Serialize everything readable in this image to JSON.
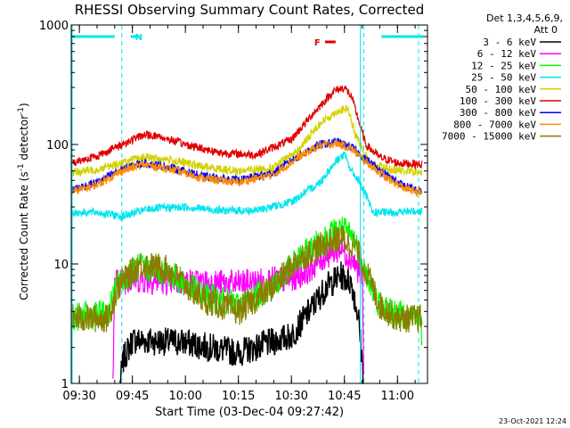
{
  "chart_data": {
    "type": "line",
    "title": "RHESSI Observing Summary Count Rates, Corrected",
    "xlabel": "Start Time (03-Dec-04 09:27:42)",
    "ylabel": "Corrected Count Rate (s^-1 detector^-1)",
    "ylabel_main": "Corrected Count Rate (s",
    "ylabel_sup1": "-1",
    "ylabel_mid": " detector",
    "ylabel_sup2": "-1",
    "ylabel_end": ")",
    "y_scale": "log",
    "ylim": [
      1,
      1000
    ],
    "xlim": [
      "09:27:42",
      "11:08:30"
    ],
    "x_ticks": [
      "09:30",
      "09:45",
      "10:00",
      "10:15",
      "10:30",
      "10:45",
      "11:00"
    ],
    "y_ticks": [
      "1",
      "10",
      "100",
      "1000"
    ],
    "grid": false,
    "legend_position": "right",
    "legend_header": [
      "Det 1,3,4,5,6,9,",
      "Att 0"
    ],
    "timestamp": "23-Oct-2021 12:24",
    "flags": [
      {
        "label": "N",
        "color": "#00e5ee",
        "segments": [
          [
            "09:27:42",
            "09:40:00"
          ],
          [
            "09:44:30",
            "09:47:00"
          ],
          [
            "10:55:30",
            "11:07:30"
          ]
        ]
      },
      {
        "label": "F",
        "color": "#e00000",
        "segments": [
          [
            "10:39:30",
            "10:42:30"
          ]
        ]
      }
    ],
    "event_markers": [
      {
        "time": "09:42:00",
        "style": "dashed"
      },
      {
        "time": "10:50:30",
        "style": "dashed"
      },
      {
        "time": "11:06:00",
        "style": "dashed"
      }
    ],
    "series": [
      {
        "name": "3 - 6 keV",
        "color": "#000000",
        "points": [
          [
            "09:41:30",
            1.0
          ],
          [
            "09:42:30",
            1.6
          ],
          [
            "09:45:00",
            2.3
          ],
          [
            "10:00:00",
            2.2
          ],
          [
            "10:15:00",
            1.8
          ],
          [
            "10:30:00",
            2.5
          ],
          [
            "10:35:00",
            4.0
          ],
          [
            "10:40:00",
            6.5
          ],
          [
            "10:44:00",
            8.0
          ],
          [
            "10:47:00",
            7.0
          ],
          [
            "10:49:00",
            3.5
          ],
          [
            "10:50:30",
            1.0
          ]
        ]
      },
      {
        "name": "6 - 12 keV",
        "color": "#ff00ff",
        "points": [
          [
            "09:39:30",
            1.0
          ],
          [
            "09:40:00",
            7.0
          ],
          [
            "09:45:00",
            7.5
          ],
          [
            "10:00:00",
            7.0
          ],
          [
            "10:15:00",
            6.8
          ],
          [
            "10:30:00",
            7.5
          ],
          [
            "10:35:00",
            9.0
          ],
          [
            "10:40:00",
            12.0
          ],
          [
            "10:44:00",
            13.5
          ],
          [
            "10:47:00",
            11.0
          ],
          [
            "10:50:00",
            8.0
          ],
          [
            "10:50:30",
            1.0
          ]
        ]
      },
      {
        "name": "12 - 25 keV",
        "color": "#00ff00",
        "points": [
          [
            "09:27:42",
            3.6
          ],
          [
            "09:38:00",
            3.8
          ],
          [
            "09:41:00",
            7.0
          ],
          [
            "09:47:00",
            9.5
          ],
          [
            "09:55:00",
            8.5
          ],
          [
            "10:05:00",
            5.5
          ],
          [
            "10:15:00",
            4.5
          ],
          [
            "10:25:00",
            6.5
          ],
          [
            "10:32:00",
            11.0
          ],
          [
            "10:40:00",
            17.0
          ],
          [
            "10:44:00",
            20.0
          ],
          [
            "10:48:00",
            16.0
          ],
          [
            "10:52:00",
            7.0
          ],
          [
            "10:55:00",
            4.5
          ],
          [
            "11:00:00",
            3.8
          ],
          [
            "11:06:00",
            3.6
          ],
          [
            "11:07:00",
            2.5
          ]
        ]
      },
      {
        "name": "25 - 50 keV",
        "color": "#00e5ee",
        "points": [
          [
            "09:27:42",
            27
          ],
          [
            "09:35:00",
            27
          ],
          [
            "09:42:00",
            25
          ],
          [
            "09:50:00",
            29
          ],
          [
            "10:00:00",
            30
          ],
          [
            "10:10:00",
            28
          ],
          [
            "10:20:00",
            28
          ],
          [
            "10:30:00",
            33
          ],
          [
            "10:38:00",
            48
          ],
          [
            "10:43:00",
            75
          ],
          [
            "10:45:00",
            82
          ],
          [
            "10:47:00",
            60
          ],
          [
            "10:49:00",
            50
          ],
          [
            "10:51:00",
            38
          ],
          [
            "10:53:00",
            27
          ],
          [
            "11:00:00",
            27
          ],
          [
            "11:07:00",
            28
          ]
        ]
      },
      {
        "name": "50 - 100 keV",
        "color": "#d2d200",
        "points": [
          [
            "09:27:42",
            58
          ],
          [
            "09:35:00",
            62
          ],
          [
            "09:42:00",
            70
          ],
          [
            "09:48:00",
            78
          ],
          [
            "09:55:00",
            75
          ],
          [
            "10:05:00",
            65
          ],
          [
            "10:15:00",
            60
          ],
          [
            "10:25:00",
            64
          ],
          [
            "10:32:00",
            90
          ],
          [
            "10:38:00",
            150
          ],
          [
            "10:43:00",
            190
          ],
          [
            "10:46:00",
            200
          ],
          [
            "10:48:00",
            120
          ],
          [
            "10:50:00",
            95
          ],
          [
            "10:52:00",
            70
          ],
          [
            "10:58:00",
            62
          ],
          [
            "11:07:00",
            58
          ]
        ]
      },
      {
        "name": "100 - 300 keV",
        "color": "#e00000",
        "points": [
          [
            "09:27:42",
            70
          ],
          [
            "09:35:00",
            80
          ],
          [
            "09:42:00",
            100
          ],
          [
            "09:48:00",
            120
          ],
          [
            "09:52:00",
            118
          ],
          [
            "10:00:00",
            100
          ],
          [
            "10:10:00",
            85
          ],
          [
            "10:20:00",
            82
          ],
          [
            "10:30:00",
            110
          ],
          [
            "10:36:00",
            180
          ],
          [
            "10:42:00",
            280
          ],
          [
            "10:45:00",
            300
          ],
          [
            "10:47:00",
            250
          ],
          [
            "10:49:00",
            160
          ],
          [
            "10:51:00",
            100
          ],
          [
            "10:55:00",
            78
          ],
          [
            "11:00:00",
            70
          ],
          [
            "11:07:00",
            68
          ]
        ]
      },
      {
        "name": "300 - 800 keV",
        "color": "#0000ff",
        "points": [
          [
            "09:27:42",
            42
          ],
          [
            "09:35:00",
            48
          ],
          [
            "09:42:00",
            62
          ],
          [
            "09:48:00",
            70
          ],
          [
            "09:55:00",
            65
          ],
          [
            "10:05:00",
            54
          ],
          [
            "10:15:00",
            50
          ],
          [
            "10:25:00",
            58
          ],
          [
            "10:32:00",
            80
          ],
          [
            "10:38:00",
            100
          ],
          [
            "10:43:00",
            105
          ],
          [
            "10:47:00",
            95
          ],
          [
            "10:51:00",
            75
          ],
          [
            "10:57:00",
            55
          ],
          [
            "11:02:00",
            45
          ],
          [
            "11:07:00",
            40
          ]
        ]
      },
      {
        "name": "800 - 7000 keV",
        "color": "#ff8c00",
        "points": [
          [
            "09:27:42",
            40
          ],
          [
            "09:35:00",
            46
          ],
          [
            "09:42:00",
            60
          ],
          [
            "09:48:00",
            68
          ],
          [
            "09:55:00",
            63
          ],
          [
            "10:05:00",
            52
          ],
          [
            "10:15:00",
            48
          ],
          [
            "10:25:00",
            56
          ],
          [
            "10:32:00",
            78
          ],
          [
            "10:38:00",
            98
          ],
          [
            "10:43:00",
            102
          ],
          [
            "10:47:00",
            92
          ],
          [
            "10:51:00",
            72
          ],
          [
            "10:57:00",
            52
          ],
          [
            "11:02:00",
            43
          ],
          [
            "11:07:00",
            39
          ]
        ]
      },
      {
        "name": "7000 - 15000 keV",
        "color": "#8b7d00",
        "points": [
          [
            "09:27:42",
            3.5
          ],
          [
            "09:38:00",
            3.5
          ],
          [
            "09:41:00",
            6.5
          ],
          [
            "09:47:00",
            10.0
          ],
          [
            "09:55:00",
            9.0
          ],
          [
            "10:05:00",
            5.0
          ],
          [
            "10:15:00",
            4.0
          ],
          [
            "10:25:00",
            6.5
          ],
          [
            "10:32:00",
            11.0
          ],
          [
            "10:40:00",
            15.0
          ],
          [
            "10:44:00",
            16.5
          ],
          [
            "10:48:00",
            14.0
          ],
          [
            "10:52:00",
            7.5
          ],
          [
            "10:55:00",
            4.5
          ],
          [
            "11:00:00",
            3.5
          ],
          [
            "11:07:00",
            3.5
          ]
        ]
      }
    ]
  }
}
